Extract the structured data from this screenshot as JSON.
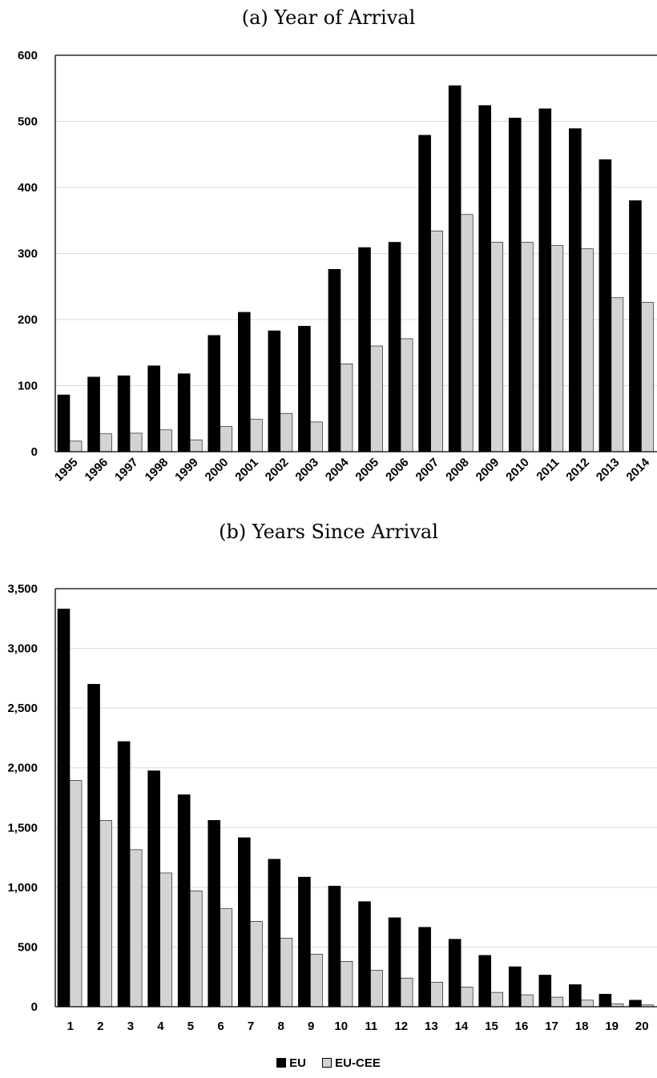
{
  "colors": {
    "EU": "#000000",
    "EU-CEE": "#d3d3d3"
  },
  "legend": {
    "eu": "EU",
    "eucee": "EU-CEE"
  },
  "chart_data": [
    {
      "type": "bar",
      "title": "(a) Year of Arrival",
      "xlabel": "",
      "ylabel": "",
      "ylim": [
        0,
        600
      ],
      "yticks": [
        0,
        100,
        200,
        300,
        400,
        500,
        600
      ],
      "ytick_labels": [
        "0",
        "100",
        "200",
        "300",
        "400",
        "500",
        "600"
      ],
      "grid": true,
      "categories": [
        "1995",
        "1996",
        "1997",
        "1998",
        "1999",
        "2000",
        "2001",
        "2002",
        "2003",
        "2004",
        "2005",
        "2006",
        "2007",
        "2008",
        "2009",
        "2010",
        "2011",
        "2012",
        "2013",
        "2014"
      ],
      "series": [
        {
          "name": "EU",
          "values": [
            86,
            113,
            115,
            130,
            118,
            176,
            211,
            183,
            190,
            276,
            309,
            317,
            479,
            554,
            524,
            505,
            519,
            489,
            442,
            380
          ]
        },
        {
          "name": "EU-CEE",
          "values": [
            16,
            27,
            28,
            33,
            18,
            38,
            49,
            58,
            45,
            133,
            160,
            171,
            334,
            359,
            317,
            317,
            312,
            307,
            233,
            226
          ]
        }
      ]
    },
    {
      "type": "bar",
      "title": "(b) Years Since Arrival",
      "xlabel": "",
      "ylabel": "",
      "ylim": [
        0,
        3500
      ],
      "yticks": [
        0,
        500,
        1000,
        1500,
        2000,
        2500,
        3000,
        3500
      ],
      "ytick_labels": [
        "0",
        "500",
        "1,000",
        "1,500",
        "2,000",
        "2,500",
        "3,000",
        "3,500"
      ],
      "grid": true,
      "categories": [
        "1",
        "2",
        "3",
        "4",
        "5",
        "6",
        "7",
        "8",
        "9",
        "10",
        "11",
        "12",
        "13",
        "14",
        "15",
        "16",
        "17",
        "18",
        "19",
        "20"
      ],
      "series": [
        {
          "name": "EU",
          "values": [
            3330,
            2700,
            2220,
            1975,
            1775,
            1560,
            1415,
            1235,
            1085,
            1010,
            880,
            745,
            665,
            565,
            430,
            335,
            265,
            185,
            105,
            55
          ]
        },
        {
          "name": "EU-CEE",
          "values": [
            1895,
            1560,
            1315,
            1120,
            970,
            820,
            715,
            575,
            440,
            380,
            305,
            240,
            205,
            165,
            120,
            100,
            80,
            55,
            25,
            15
          ]
        }
      ]
    }
  ]
}
